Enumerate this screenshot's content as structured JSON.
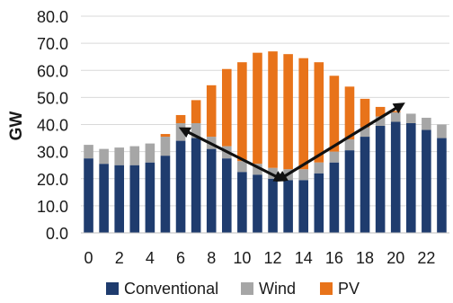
{
  "chart_data": {
    "type": "bar",
    "stacked": true,
    "ylabel": "GW",
    "xlabel": "",
    "ylim": [
      0,
      80
    ],
    "yticks": [
      "0.0",
      "10.0",
      "20.0",
      "30.0",
      "40.0",
      "50.0",
      "60.0",
      "70.0",
      "80.0"
    ],
    "xticks": [
      "0",
      "2",
      "4",
      "6",
      "8",
      "10",
      "12",
      "14",
      "16",
      "18",
      "20",
      "22"
    ],
    "categories": [
      0,
      1,
      2,
      3,
      4,
      5,
      6,
      7,
      8,
      9,
      10,
      11,
      12,
      13,
      14,
      15,
      16,
      17,
      18,
      19,
      20,
      21,
      22,
      23
    ],
    "grid": true,
    "legend": "bottom",
    "series": [
      {
        "name": "Conventional",
        "color": "#1f3c6e",
        "values": [
          27.5,
          25.5,
          25.0,
          25.0,
          26.0,
          28.5,
          34.0,
          35.0,
          31.0,
          27.5,
          22.5,
          21.5,
          20.0,
          19.5,
          19.5,
          22.0,
          26.0,
          30.5,
          35.5,
          39.5,
          41.0,
          40.5,
          38.0,
          35.0
        ]
      },
      {
        "name": "Wind",
        "color": "#a6a6a6",
        "values": [
          5.0,
          5.5,
          6.5,
          7.0,
          7.0,
          7.0,
          6.5,
          5.5,
          4.5,
          4.5,
          4.0,
          4.0,
          4.0,
          4.0,
          4.0,
          4.0,
          4.0,
          4.0,
          3.5,
          3.5,
          3.5,
          3.5,
          4.5,
          5.0
        ]
      },
      {
        "name": "PV",
        "color": "#e8731a",
        "values": [
          0,
          0,
          0,
          0,
          0,
          1.0,
          3.0,
          8.5,
          19.0,
          28.5,
          36.5,
          41.0,
          43.0,
          42.5,
          41.0,
          37.0,
          28.0,
          19.5,
          10.5,
          3.5,
          0.5,
          0,
          0,
          0
        ]
      }
    ],
    "annotations": [
      {
        "type": "double-arrow",
        "from": [
          12.5,
          20
        ],
        "to": [
          6.2,
          38
        ]
      },
      {
        "type": "double-arrow",
        "from": [
          12.5,
          20
        ],
        "to": [
          20.3,
          47
        ]
      }
    ]
  }
}
